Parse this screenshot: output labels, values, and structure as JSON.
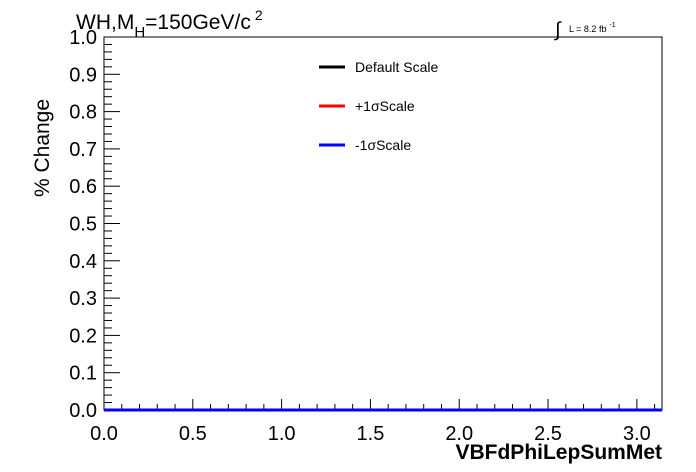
{
  "chart_data": {
    "type": "line",
    "title_parts": {
      "main": "WH,M",
      "sub": "H",
      "rest": "=150GeV/c",
      "sup": "2"
    },
    "lumi_parts": {
      "symbol": "∫",
      "text": "L = 8.2 fb",
      "sup": "-1"
    },
    "xlabel": "VBFdPhiLepSumMet",
    "ylabel": "% Change",
    "xlim": [
      0.0,
      3.14159
    ],
    "ylim": [
      0.0,
      1.0
    ],
    "x_ticks": [
      "0.0",
      "0.5",
      "1.0",
      "1.5",
      "2.0",
      "2.5",
      "3.0"
    ],
    "x_tick_values": [
      0.0,
      0.5,
      1.0,
      1.5,
      2.0,
      2.5,
      3.0
    ],
    "y_ticks": [
      "0.0",
      "0.1",
      "0.2",
      "0.3",
      "0.4",
      "0.5",
      "0.6",
      "0.7",
      "0.8",
      "0.9",
      "1.0"
    ],
    "y_tick_values": [
      0.0,
      0.1,
      0.2,
      0.3,
      0.4,
      0.5,
      0.6,
      0.7,
      0.8,
      0.9,
      1.0
    ],
    "legend_position": "top-center",
    "grid": false,
    "series": [
      {
        "name": "Default Scale",
        "color": "#000000",
        "x": [
          0.0,
          3.14159
        ],
        "y": [
          0.0,
          0.0
        ]
      },
      {
        "name": "+1σScale",
        "color": "#ff0000",
        "x": [
          0.0,
          3.14159
        ],
        "y": [
          0.0,
          0.0
        ]
      },
      {
        "name": "-1σScale",
        "color": "#0000ff",
        "x": [
          0.0,
          3.14159
        ],
        "y": [
          0.0,
          0.0
        ]
      }
    ]
  }
}
